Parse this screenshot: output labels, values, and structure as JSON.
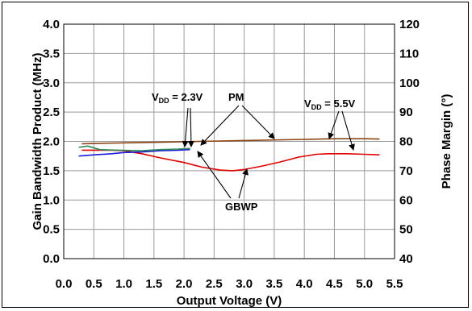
{
  "chart_data": {
    "type": "line",
    "xlabel": "Output Voltage (V)",
    "ylabel_left": "Gain Bandwidth Product (MHz)",
    "ylabel_right": "Phase Margin (°)",
    "xlim": [
      0,
      5.5
    ],
    "ylim_left": [
      0,
      4.0
    ],
    "ylim_right": [
      40,
      120
    ],
    "x_ticks": [
      "0.0",
      "0.5",
      "1.0",
      "1.5",
      "2.0",
      "2.5",
      "3.0",
      "3.5",
      "4.0",
      "4.5",
      "5.0",
      "5.5"
    ],
    "y_left_ticks": [
      "0.0",
      "0.5",
      "1.0",
      "1.5",
      "2.0",
      "2.5",
      "3.0",
      "3.5",
      "4.0"
    ],
    "y_right_ticks": [
      "40",
      "50",
      "60",
      "70",
      "80",
      "90",
      "100",
      "110",
      "120"
    ],
    "grid": true,
    "series": [
      {
        "axis": "right",
        "color": "#8b4513",
        "x": [
          0.3,
          1.0,
          2.0,
          3.0,
          4.0,
          4.5,
          5.0,
          5.25
        ],
        "y": [
          79.2,
          79.5,
          79.9,
          80.3,
          80.7,
          80.9,
          80.9,
          80.8
        ]
      },
      {
        "axis": "left",
        "color": "#e00000",
        "x": [
          0.3,
          0.5,
          0.8,
          1.0,
          1.3,
          1.6,
          2.0,
          2.3,
          2.6,
          2.8,
          3.0,
          3.3,
          3.6,
          3.9,
          4.2,
          4.4,
          4.7,
          5.0,
          5.25
        ],
        "y": [
          1.85,
          1.85,
          1.85,
          1.84,
          1.79,
          1.72,
          1.64,
          1.56,
          1.51,
          1.5,
          1.52,
          1.58,
          1.65,
          1.73,
          1.78,
          1.79,
          1.79,
          1.78,
          1.77
        ]
      },
      {
        "axis": "left",
        "color": "#1a1adc",
        "x": [
          0.25,
          0.5,
          0.8,
          1.0,
          1.3,
          1.6,
          1.9,
          2.1
        ],
        "y": [
          1.75,
          1.77,
          1.79,
          1.81,
          1.82,
          1.84,
          1.85,
          1.86
        ]
      },
      {
        "axis": "left",
        "color": "#2e8b57",
        "x": [
          0.25,
          0.4,
          0.6,
          0.9,
          1.3,
          1.6,
          1.9,
          2.1
        ],
        "y": [
          1.9,
          1.92,
          1.86,
          1.85,
          1.84,
          1.86,
          1.87,
          1.88
        ]
      }
    ],
    "annotations": [
      {
        "id": "vdd23",
        "main": "V",
        "sub": "DD",
        "rest": " = 2.3V"
      },
      {
        "id": "pm",
        "text": "PM"
      },
      {
        "id": "vdd55",
        "main": "V",
        "sub": "DD",
        "rest": " = 5.5V"
      },
      {
        "id": "gbwp",
        "text": "GBWP"
      }
    ]
  }
}
